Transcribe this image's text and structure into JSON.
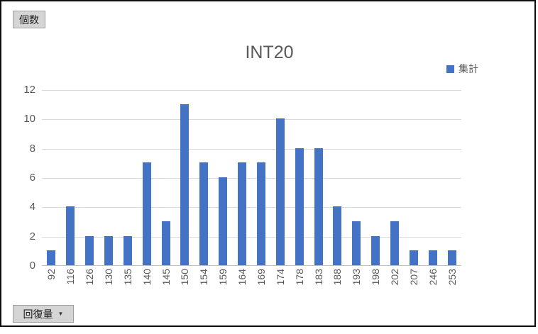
{
  "pivot_buttons": {
    "value_field": "個数",
    "axis_field": "回復量",
    "dropdown_icon": "▼"
  },
  "chart_data": {
    "type": "bar",
    "title": "INT20",
    "categories": [
      "92",
      "116",
      "126",
      "130",
      "135",
      "140",
      "145",
      "150",
      "154",
      "159",
      "164",
      "169",
      "174",
      "178",
      "183",
      "188",
      "193",
      "198",
      "202",
      "207",
      "246",
      "253"
    ],
    "series": [
      {
        "name": "集計",
        "values": [
          1,
          4,
          2,
          2,
          2,
          7,
          3,
          11,
          7,
          6,
          7,
          7,
          10,
          8,
          8,
          4,
          3,
          2,
          3,
          1,
          1,
          1
        ]
      }
    ],
    "ylim": [
      0,
      12
    ],
    "ytick_step": 2,
    "grid": true,
    "legend_position": "top-right",
    "bar_color": "#4472C4",
    "gridline_color": "#D9D9D9",
    "axis_line_color": "#BFBFBF",
    "axis_text_color": "#595959",
    "title_color": "#595959"
  }
}
